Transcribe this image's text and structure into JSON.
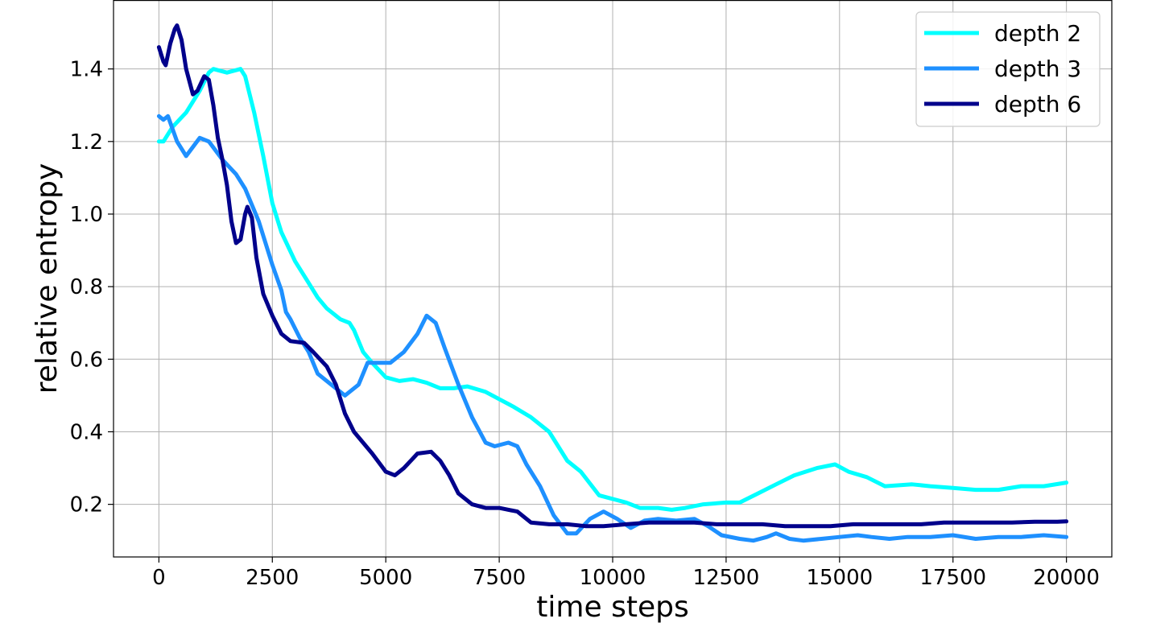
{
  "chart_data": {
    "type": "line",
    "xlabel": "time steps",
    "ylabel": "relative entropy",
    "xlim": [
      -1000,
      21000
    ],
    "ylim": [
      0.055,
      1.59
    ],
    "x_ticks": [
      0,
      2500,
      5000,
      7500,
      10000,
      12500,
      15000,
      17500,
      20000
    ],
    "y_ticks": [
      0.2,
      0.4,
      0.6,
      0.8,
      1.0,
      1.2,
      1.4
    ],
    "y_tick_labels": [
      "0.2",
      "0.4",
      "0.6",
      "0.8",
      "1.0",
      "1.2",
      "1.4"
    ],
    "grid": true,
    "legend_position": "top-right",
    "series": [
      {
        "name": "depth 2",
        "color": "#00ffff",
        "points": [
          [
            0,
            1.2
          ],
          [
            100,
            1.2
          ],
          [
            300,
            1.24
          ],
          [
            600,
            1.28
          ],
          [
            900,
            1.34
          ],
          [
            1100,
            1.39
          ],
          [
            1200,
            1.4
          ],
          [
            1500,
            1.39
          ],
          [
            1800,
            1.4
          ],
          [
            1900,
            1.38
          ],
          [
            2100,
            1.28
          ],
          [
            2300,
            1.16
          ],
          [
            2500,
            1.03
          ],
          [
            2700,
            0.95
          ],
          [
            3000,
            0.87
          ],
          [
            3300,
            0.81
          ],
          [
            3500,
            0.77
          ],
          [
            3700,
            0.74
          ],
          [
            4000,
            0.71
          ],
          [
            4200,
            0.7
          ],
          [
            4300,
            0.68
          ],
          [
            4500,
            0.62
          ],
          [
            4700,
            0.59
          ],
          [
            5000,
            0.55
          ],
          [
            5300,
            0.54
          ],
          [
            5600,
            0.545
          ],
          [
            5900,
            0.535
          ],
          [
            6200,
            0.52
          ],
          [
            6500,
            0.52
          ],
          [
            6800,
            0.525
          ],
          [
            7200,
            0.51
          ],
          [
            7500,
            0.49
          ],
          [
            7800,
            0.47
          ],
          [
            8200,
            0.44
          ],
          [
            8600,
            0.4
          ],
          [
            9000,
            0.32
          ],
          [
            9300,
            0.29
          ],
          [
            9700,
            0.225
          ],
          [
            10000,
            0.215
          ],
          [
            10300,
            0.205
          ],
          [
            10600,
            0.19
          ],
          [
            11000,
            0.19
          ],
          [
            11300,
            0.185
          ],
          [
            11600,
            0.19
          ],
          [
            12000,
            0.2
          ],
          [
            12500,
            0.205
          ],
          [
            12800,
            0.205
          ],
          [
            13200,
            0.23
          ],
          [
            13600,
            0.255
          ],
          [
            14000,
            0.28
          ],
          [
            14500,
            0.3
          ],
          [
            14900,
            0.31
          ],
          [
            15200,
            0.29
          ],
          [
            15600,
            0.275
          ],
          [
            16000,
            0.25
          ],
          [
            16600,
            0.255
          ],
          [
            17000,
            0.25
          ],
          [
            17500,
            0.245
          ],
          [
            18000,
            0.24
          ],
          [
            18500,
            0.24
          ],
          [
            19000,
            0.25
          ],
          [
            19500,
            0.25
          ],
          [
            20000,
            0.26
          ]
        ]
      },
      {
        "name": "depth 3",
        "color": "#1e90ff",
        "points": [
          [
            0,
            1.27
          ],
          [
            100,
            1.26
          ],
          [
            200,
            1.27
          ],
          [
            400,
            1.2
          ],
          [
            600,
            1.16
          ],
          [
            900,
            1.21
          ],
          [
            1100,
            1.2
          ],
          [
            1400,
            1.15
          ],
          [
            1700,
            1.11
          ],
          [
            1900,
            1.07
          ],
          [
            2200,
            0.98
          ],
          [
            2500,
            0.86
          ],
          [
            2700,
            0.79
          ],
          [
            2800,
            0.73
          ],
          [
            2900,
            0.71
          ],
          [
            3100,
            0.66
          ],
          [
            3300,
            0.62
          ],
          [
            3500,
            0.56
          ],
          [
            3800,
            0.53
          ],
          [
            4100,
            0.5
          ],
          [
            4400,
            0.53
          ],
          [
            4600,
            0.59
          ],
          [
            4900,
            0.59
          ],
          [
            5100,
            0.59
          ],
          [
            5400,
            0.62
          ],
          [
            5700,
            0.67
          ],
          [
            5900,
            0.72
          ],
          [
            6100,
            0.7
          ],
          [
            6300,
            0.63
          ],
          [
            6600,
            0.53
          ],
          [
            6900,
            0.44
          ],
          [
            7200,
            0.37
          ],
          [
            7400,
            0.36
          ],
          [
            7700,
            0.37
          ],
          [
            7900,
            0.36
          ],
          [
            8100,
            0.31
          ],
          [
            8400,
            0.25
          ],
          [
            8700,
            0.17
          ],
          [
            9000,
            0.12
          ],
          [
            9200,
            0.12
          ],
          [
            9500,
            0.16
          ],
          [
            9800,
            0.18
          ],
          [
            10100,
            0.16
          ],
          [
            10400,
            0.135
          ],
          [
            10700,
            0.155
          ],
          [
            11000,
            0.16
          ],
          [
            11400,
            0.155
          ],
          [
            11800,
            0.16
          ],
          [
            12100,
            0.14
          ],
          [
            12400,
            0.115
          ],
          [
            12800,
            0.105
          ],
          [
            13100,
            0.1
          ],
          [
            13400,
            0.11
          ],
          [
            13600,
            0.12
          ],
          [
            13900,
            0.105
          ],
          [
            14200,
            0.1
          ],
          [
            14600,
            0.105
          ],
          [
            15000,
            0.11
          ],
          [
            15400,
            0.115
          ],
          [
            15700,
            0.11
          ],
          [
            16100,
            0.105
          ],
          [
            16500,
            0.11
          ],
          [
            17000,
            0.11
          ],
          [
            17500,
            0.115
          ],
          [
            18000,
            0.105
          ],
          [
            18500,
            0.11
          ],
          [
            19000,
            0.11
          ],
          [
            19500,
            0.115
          ],
          [
            20000,
            0.11
          ]
        ]
      },
      {
        "name": "depth 6",
        "color": "#00008b",
        "points": [
          [
            0,
            1.46
          ],
          [
            100,
            1.42
          ],
          [
            150,
            1.41
          ],
          [
            250,
            1.47
          ],
          [
            350,
            1.51
          ],
          [
            400,
            1.52
          ],
          [
            500,
            1.48
          ],
          [
            600,
            1.4
          ],
          [
            750,
            1.33
          ],
          [
            850,
            1.34
          ],
          [
            1000,
            1.38
          ],
          [
            1100,
            1.37
          ],
          [
            1200,
            1.3
          ],
          [
            1300,
            1.21
          ],
          [
            1400,
            1.15
          ],
          [
            1500,
            1.08
          ],
          [
            1600,
            0.98
          ],
          [
            1700,
            0.92
          ],
          [
            1800,
            0.93
          ],
          [
            1900,
            1.0
          ],
          [
            1950,
            1.02
          ],
          [
            2050,
            0.99
          ],
          [
            2150,
            0.88
          ],
          [
            2300,
            0.78
          ],
          [
            2500,
            0.72
          ],
          [
            2700,
            0.67
          ],
          [
            2900,
            0.65
          ],
          [
            3200,
            0.645
          ],
          [
            3400,
            0.62
          ],
          [
            3700,
            0.58
          ],
          [
            3900,
            0.53
          ],
          [
            4100,
            0.45
          ],
          [
            4300,
            0.4
          ],
          [
            4500,
            0.37
          ],
          [
            4700,
            0.34
          ],
          [
            5000,
            0.29
          ],
          [
            5200,
            0.28
          ],
          [
            5400,
            0.3
          ],
          [
            5700,
            0.34
          ],
          [
            6000,
            0.345
          ],
          [
            6200,
            0.32
          ],
          [
            6400,
            0.28
          ],
          [
            6600,
            0.23
          ],
          [
            6900,
            0.2
          ],
          [
            7200,
            0.19
          ],
          [
            7500,
            0.19
          ],
          [
            7900,
            0.18
          ],
          [
            8200,
            0.15
          ],
          [
            8600,
            0.145
          ],
          [
            9000,
            0.145
          ],
          [
            9400,
            0.14
          ],
          [
            9800,
            0.14
          ],
          [
            10300,
            0.145
          ],
          [
            10800,
            0.15
          ],
          [
            11300,
            0.15
          ],
          [
            11800,
            0.15
          ],
          [
            12300,
            0.145
          ],
          [
            12800,
            0.145
          ],
          [
            13300,
            0.145
          ],
          [
            13800,
            0.14
          ],
          [
            14300,
            0.14
          ],
          [
            14800,
            0.14
          ],
          [
            15300,
            0.145
          ],
          [
            15800,
            0.145
          ],
          [
            16300,
            0.145
          ],
          [
            16800,
            0.145
          ],
          [
            17300,
            0.15
          ],
          [
            17800,
            0.15
          ],
          [
            18300,
            0.15
          ],
          [
            18800,
            0.15
          ],
          [
            19300,
            0.152
          ],
          [
            19800,
            0.152
          ],
          [
            20000,
            0.153
          ]
        ]
      }
    ]
  }
}
